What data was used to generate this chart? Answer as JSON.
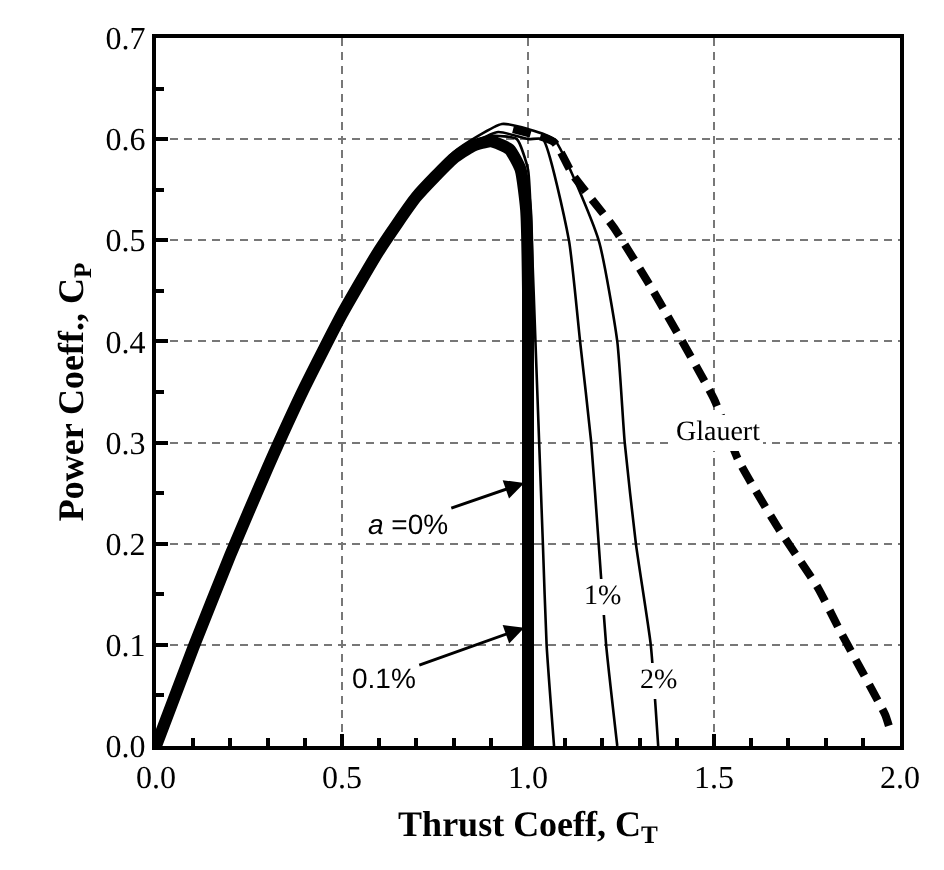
{
  "chart_data": {
    "type": "line",
    "xlabel": "Thrust Coeff, C$_{T}$",
    "ylabel": "Power Coeff., C$_{P}$",
    "xlim": [
      0,
      2
    ],
    "ylim": [
      0,
      0.7
    ],
    "xticks": [
      {
        "value": 0,
        "label": "0.0"
      },
      0.5,
      {
        "value": 1,
        "label": "1.0"
      },
      1.5,
      {
        "value": 2,
        "label": "2.0"
      }
    ],
    "yticks": [
      {
        "value": 0,
        "label": "0.0"
      },
      0.1,
      0.2,
      0.3,
      0.4,
      0.5,
      0.6,
      0.7
    ],
    "grid": true,
    "series": [
      {
        "color": "#000000",
        "line_style": "solid",
        "x": [
          0,
          0.1,
          0.2,
          0.3,
          0.4,
          0.5,
          0.6,
          0.7,
          0.8,
          0.85,
          0.9,
          0.95,
          0.98,
          0.995,
          1.0,
          1.0
        ],
        "values": [
          0,
          0.097,
          0.189,
          0.275,
          0.355,
          0.427,
          0.49,
          0.543,
          0.581,
          0.593,
          0.598,
          0.59,
          0.57,
          0.53,
          0.45,
          0
        ]
      },
      {
        "color": "#000000",
        "line_style": "solid",
        "x": [
          0,
          0.2,
          0.4,
          0.6,
          0.8,
          0.9,
          0.97,
          1.0,
          1.01,
          1.02,
          1.03,
          1.04,
          1.05,
          1.07
        ],
        "values": [
          0,
          0.189,
          0.355,
          0.49,
          0.583,
          0.603,
          0.6,
          0.57,
          0.5,
          0.4,
          0.3,
          0.2,
          0.1,
          0
        ]
      },
      {
        "color": "#000000",
        "line_style": "solid",
        "x": [
          0,
          0.2,
          0.4,
          0.6,
          0.8,
          0.92,
          1.0,
          1.04,
          1.11,
          1.14,
          1.17,
          1.19,
          1.21,
          1.24
        ],
        "values": [
          0,
          0.189,
          0.355,
          0.49,
          0.585,
          0.607,
          0.6,
          0.6,
          0.5,
          0.4,
          0.3,
          0.2,
          0.1,
          0
        ]
      },
      {
        "color": "#000000",
        "line_style": "solid",
        "x": [
          0,
          0.2,
          0.4,
          0.6,
          0.8,
          0.93,
          1.0,
          1.07,
          1.19,
          1.24,
          1.26,
          1.29,
          1.33,
          1.35
        ],
        "values": [
          0,
          0.189,
          0.355,
          0.49,
          0.587,
          0.615,
          0.61,
          0.6,
          0.5,
          0.4,
          0.3,
          0.2,
          0.1,
          0
        ]
      },
      {
        "color": "#000000",
        "line_style": "dashed",
        "x": [
          0.96,
          1.07,
          1.12,
          1.23,
          1.33,
          1.5,
          1.565,
          1.67,
          1.78,
          1.84,
          1.96,
          1.97
        ],
        "values": [
          0.61,
          0.597,
          0.565,
          0.513,
          0.454,
          0.343,
          0.283,
          0.217,
          0.156,
          0.113,
          0.031,
          0.02
        ]
      }
    ],
    "annotations": [
      {
        "text": "a =0%",
        "x": 0.99,
        "y": 0.26
      },
      {
        "text": "0.1%",
        "x": 0.99,
        "y": 0.117
      },
      {
        "text": "1%",
        "x": 1.2,
        "y": 0.148
      },
      {
        "text": "2%",
        "x": 1.35,
        "y": 0.065
      },
      {
        "text": "Glauert",
        "x": 1.51,
        "y": 0.31
      }
    ]
  }
}
